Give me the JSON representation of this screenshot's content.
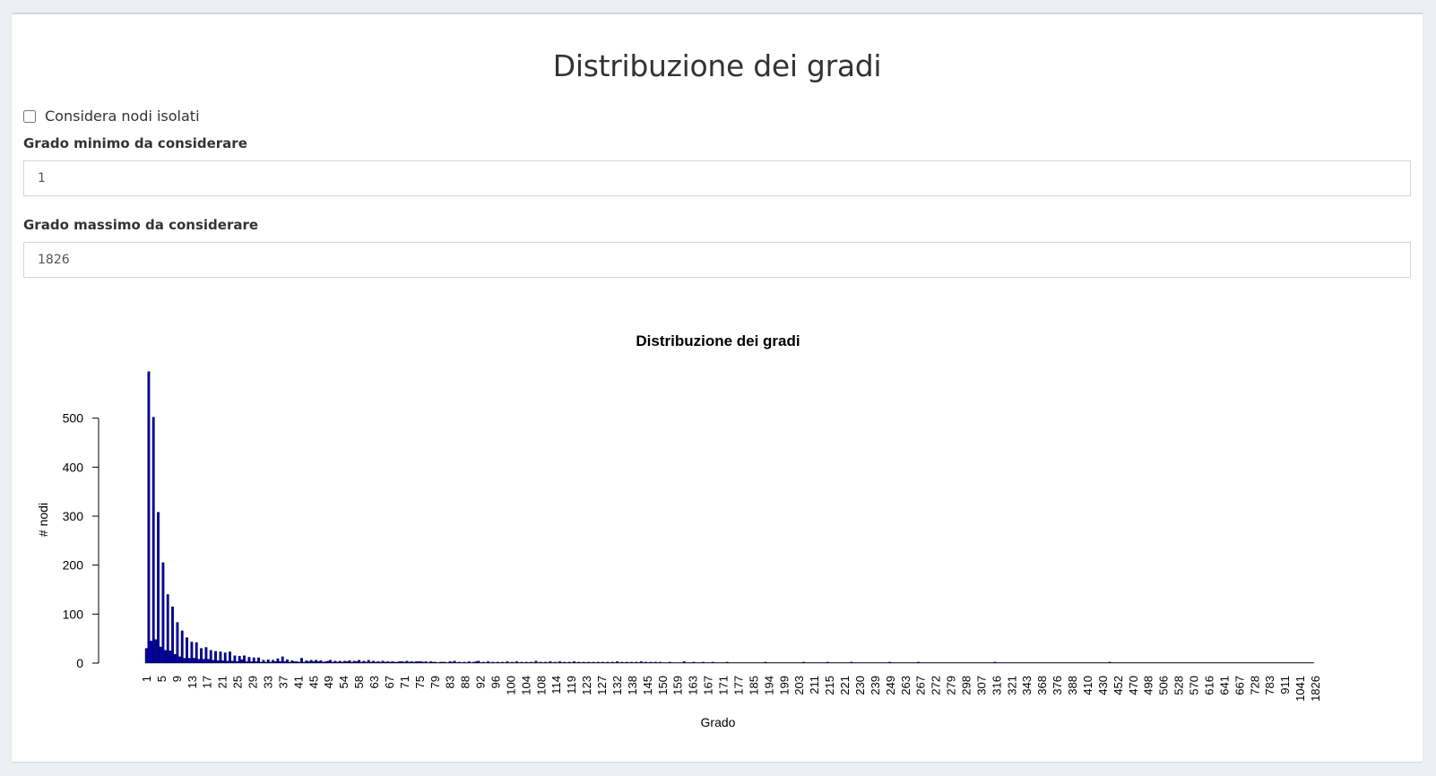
{
  "page": {
    "title": "Distribuzione dei gradi",
    "isolated_checkbox_label": "Considera nodi isolati",
    "isolated_checked": false,
    "min_label": "Grado minimo da considerare",
    "min_value": "1",
    "max_label": "Grado massimo da considerare",
    "max_value": "1826"
  },
  "colors": {
    "bar": "#0000bb",
    "bar_edge": "#000000"
  },
  "chart_data": {
    "type": "bar",
    "title": "Distribuzione dei gradi",
    "xlabel": "Grado",
    "ylabel": "# nodi",
    "ylim": [
      0,
      600
    ],
    "yticks": [
      0,
      100,
      200,
      300,
      400,
      500
    ],
    "grid": false,
    "legend": "none",
    "tick_labels": [
      "1",
      "5",
      "9",
      "13",
      "17",
      "21",
      "25",
      "29",
      "33",
      "37",
      "41",
      "45",
      "49",
      "54",
      "58",
      "63",
      "67",
      "71",
      "75",
      "79",
      "83",
      "88",
      "92",
      "96",
      "100",
      "104",
      "108",
      "114",
      "119",
      "123",
      "127",
      "132",
      "138",
      "145",
      "150",
      "159",
      "163",
      "167",
      "171",
      "177",
      "185",
      "194",
      "199",
      "203",
      "211",
      "215",
      "221",
      "230",
      "239",
      "249",
      "263",
      "267",
      "272",
      "279",
      "298",
      "307",
      "316",
      "321",
      "343",
      "368",
      "376",
      "388",
      "410",
      "430",
      "452",
      "470",
      "498",
      "506",
      "528",
      "570",
      "616",
      "641",
      "667",
      "728",
      "783",
      "911",
      "1041",
      "1826"
    ],
    "values": [
      30,
      595,
      45,
      502,
      48,
      308,
      33,
      205,
      26,
      140,
      25,
      115,
      18,
      83,
      13,
      66,
      10,
      52,
      10,
      43,
      10,
      42,
      8,
      30,
      8,
      32,
      8,
      26,
      6,
      24,
      5,
      23,
      5,
      21,
      4,
      23,
      4,
      15,
      3,
      14,
      7,
      15,
      3,
      12,
      3,
      11,
      3,
      11,
      2,
      6,
      2,
      7,
      2,
      6,
      3,
      9,
      3,
      13,
      3,
      7,
      2,
      5,
      3,
      3,
      2,
      10,
      2,
      5,
      3,
      6,
      3,
      6,
      3,
      5,
      2,
      3,
      4,
      6,
      2,
      4,
      2,
      4,
      2,
      4,
      3,
      5,
      2,
      4,
      3,
      6,
      2,
      4,
      2,
      6,
      2,
      4,
      2,
      3,
      2,
      4,
      2,
      3,
      2,
      3,
      2,
      2,
      3,
      3,
      2,
      4,
      2,
      3,
      2,
      3,
      3,
      3,
      2,
      3,
      1,
      3,
      2,
      2,
      1,
      2,
      2,
      2,
      1,
      3,
      2,
      4,
      1,
      2,
      1,
      2,
      1,
      3,
      1,
      2,
      3,
      4,
      1,
      2,
      1,
      3,
      1,
      2,
      1,
      2,
      1,
      2,
      1,
      3,
      1,
      2,
      1,
      3,
      1,
      2,
      1,
      2,
      1,
      2,
      1,
      4,
      1,
      2,
      1,
      2,
      1,
      3,
      1,
      2,
      1,
      3,
      1,
      2,
      1,
      2,
      1,
      3,
      1,
      2,
      1,
      2,
      1,
      2,
      1,
      2,
      1,
      2,
      1,
      2,
      1,
      2,
      1,
      2,
      1,
      3,
      1,
      2,
      1,
      2,
      1,
      2,
      1,
      2,
      1,
      3,
      1,
      2,
      1,
      2,
      1,
      2,
      1,
      2,
      1,
      1,
      1,
      2,
      1,
      1,
      1,
      1,
      1,
      3,
      1,
      1,
      1,
      2,
      1,
      1,
      1,
      2,
      1,
      1,
      1,
      2,
      1,
      1,
      1,
      1,
      1,
      2,
      1,
      1,
      1,
      1,
      1,
      1,
      1,
      1,
      1,
      1,
      1,
      1,
      1,
      1,
      1,
      2,
      1,
      1,
      1,
      1,
      1,
      1,
      1,
      1,
      1,
      1,
      1,
      1,
      1,
      1,
      1,
      2,
      1,
      1,
      1,
      1,
      1,
      1,
      1,
      1,
      1,
      2,
      1,
      1,
      1,
      1,
      1,
      1,
      1,
      1,
      1,
      2,
      1,
      1,
      1,
      1,
      1,
      1,
      1,
      1,
      1,
      1,
      1,
      1,
      1,
      1,
      1,
      2,
      1,
      1,
      1,
      1,
      1,
      1,
      1,
      1,
      1,
      1,
      1,
      2,
      1,
      1,
      1,
      1,
      1,
      1,
      1,
      1,
      1,
      1,
      1,
      1,
      1,
      1,
      1,
      1,
      1,
      1,
      1,
      1,
      1,
      1,
      1,
      1,
      1,
      1,
      1,
      1,
      1,
      1,
      1,
      2,
      1,
      1,
      1,
      1,
      1,
      1,
      1,
      1,
      1,
      1,
      1,
      1,
      1,
      1,
      1,
      1,
      1,
      1,
      1,
      1,
      1,
      1,
      1,
      1,
      1,
      1,
      1,
      1,
      1,
      1,
      1,
      1,
      1,
      1,
      1,
      1,
      1,
      1,
      1,
      1,
      1,
      1,
      1,
      1,
      1,
      1,
      1,
      2,
      1,
      1,
      1,
      1,
      1,
      1,
      1,
      1,
      1,
      1,
      1,
      1,
      1,
      1,
      1,
      1,
      1,
      1,
      1,
      1,
      1,
      1,
      1,
      1,
      1,
      1,
      1,
      1,
      1,
      1,
      1,
      1,
      1,
      1,
      1,
      1,
      1,
      1,
      1,
      1,
      1,
      1,
      1,
      1,
      1,
      1,
      1,
      1,
      1,
      1,
      1,
      1,
      1,
      1,
      1,
      1,
      1,
      1,
      1,
      1,
      1,
      1,
      1,
      1,
      1,
      1,
      1,
      1,
      1,
      1,
      1,
      1,
      1,
      1,
      1,
      1,
      1,
      1,
      1,
      1,
      1,
      1,
      1,
      1,
      1
    ]
  }
}
